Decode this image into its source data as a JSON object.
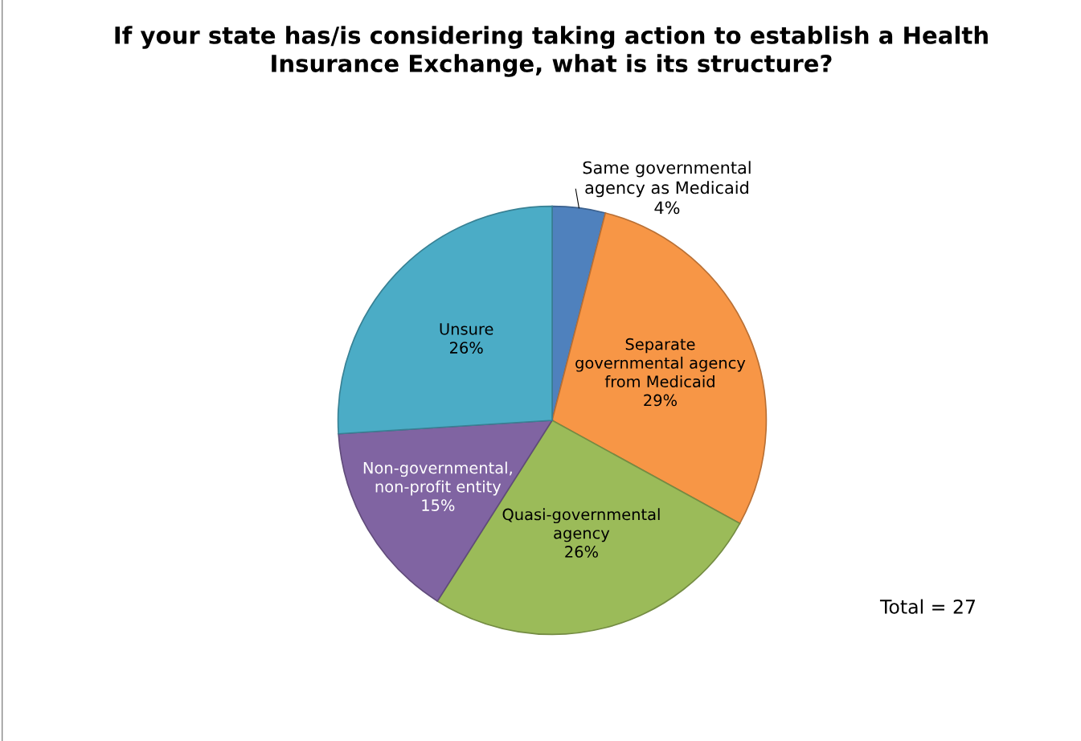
{
  "chart_data": {
    "type": "pie",
    "title": "If your state has/is considering taking action to establish a Health\nInsurance Exchange, what is its structure?",
    "categories": [
      "Same governmental\nagency as Medicaid",
      "Separate\ngovernmental agency\nfrom Medicaid",
      "Quasi-governmental\nagency",
      "Non-governmental,\nnon-profit entity",
      "Unsure"
    ],
    "values": [
      4,
      29,
      26,
      15,
      26
    ],
    "value_labels": [
      "4%",
      "29%",
      "26%",
      "15%",
      "26%"
    ],
    "colors": [
      "#4f81bd",
      "#f79646",
      "#9bbb59",
      "#8064a2",
      "#4bacc6"
    ],
    "annotations": [
      "Total = 27"
    ],
    "legend": false
  }
}
